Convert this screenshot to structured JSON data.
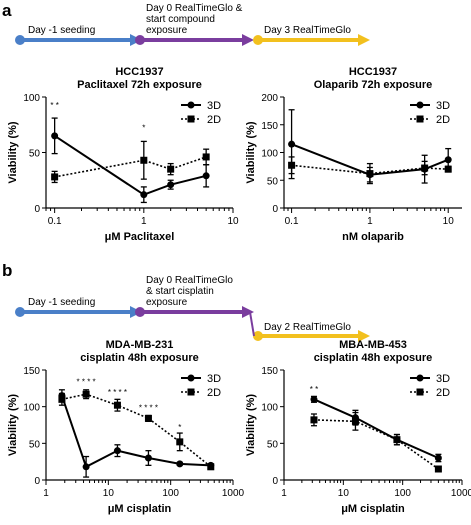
{
  "panel_a": {
    "label": "a",
    "timeline": [
      {
        "text": [
          "Day -1 seeding"
        ],
        "color": "#4a7fc8"
      },
      {
        "text": [
          "Day 0 RealTimeGlo &",
          "start compound",
          "exposure"
        ],
        "color": "#7a3d9e"
      },
      {
        "text": [
          "Day 3 RealTimeGlo"
        ],
        "color": "#f2c01e"
      }
    ]
  },
  "panel_b": {
    "label": "b",
    "timeline": [
      {
        "text": [
          "Day -1 seeding"
        ],
        "color": "#4a7fc8"
      },
      {
        "text": [
          "Day 0 RealTimeGlo",
          "& start cisplatin",
          "exposure"
        ],
        "color": "#7a3d9e"
      },
      {
        "text": [
          "Day 2 RealTimeGlo"
        ],
        "color": "#f2c01e"
      }
    ]
  },
  "chart_data": [
    {
      "type": "line",
      "title": [
        "HCC1937",
        "Paclitaxel 72h exposure"
      ],
      "xlabel": "μM Paclitaxel",
      "ylabel": "Viability (%)",
      "xscale": "log",
      "xlim": [
        0.08,
        10
      ],
      "ylim": [
        0,
        100
      ],
      "xticks": [
        0.1,
        1,
        10
      ],
      "xtick_labels": [
        "0.1",
        "1",
        "10"
      ],
      "yticks": [
        0,
        50,
        100
      ],
      "ytick_labels": [
        "0",
        "50",
        "100"
      ],
      "legend_position": "top-right",
      "series": [
        {
          "name": "3D",
          "style": "solid",
          "marker": "circle",
          "x": [
            0.1,
            1,
            2,
            5
          ],
          "y": [
            65,
            12,
            21,
            29
          ],
          "err": [
            16,
            7,
            4,
            10
          ]
        },
        {
          "name": "2D",
          "style": "dotted",
          "marker": "square",
          "x": [
            0.1,
            1,
            2,
            5
          ],
          "y": [
            28,
            43,
            35,
            46
          ],
          "err": [
            5,
            17,
            5,
            7
          ]
        }
      ],
      "annotations": [
        {
          "x": 0.1,
          "y": 90,
          "text": "* *"
        },
        {
          "x": 1,
          "y": 70,
          "text": "*"
        }
      ]
    },
    {
      "type": "line",
      "title": [
        "HCC1937",
        "Olaparib 72h exposure"
      ],
      "xlabel": "nM olaparib",
      "ylabel": "Viability (%)",
      "xscale": "log",
      "xlim": [
        0.08,
        15
      ],
      "ylim": [
        0,
        200
      ],
      "xticks": [
        0.1,
        1,
        10
      ],
      "xtick_labels": [
        "0.1",
        "1",
        "10"
      ],
      "yticks": [
        0,
        50,
        100,
        150,
        200
      ],
      "ytick_labels": [
        "0",
        "50",
        "100",
        "150",
        "200"
      ],
      "legend_position": "top-right",
      "series": [
        {
          "name": "3D",
          "style": "solid",
          "marker": "circle",
          "x": [
            0.1,
            1,
            5,
            10
          ],
          "y": [
            115,
            60,
            70,
            87
          ],
          "err": [
            62,
            13,
            25,
            20
          ]
        },
        {
          "name": "2D",
          "style": "dotted",
          "marker": "square",
          "x": [
            0.1,
            1,
            5,
            10
          ],
          "y": [
            77,
            62,
            72,
            70
          ],
          "err": [
            15,
            18,
            12,
            5
          ]
        }
      ],
      "annotations": []
    },
    {
      "type": "line",
      "title": [
        "MDA-MB-231",
        "cisplatin 48h exposure"
      ],
      "xlabel": "μM cisplatin",
      "ylabel": "Viability (%)",
      "xscale": "log",
      "xlim": [
        1,
        1000
      ],
      "ylim": [
        0,
        150
      ],
      "xticks": [
        1,
        10,
        100,
        1000
      ],
      "xtick_labels": [
        "1",
        "10",
        "100",
        "1000"
      ],
      "yticks": [
        0,
        50,
        100,
        150
      ],
      "ytick_labels": [
        "0",
        "50",
        "100",
        "150"
      ],
      "legend_position": "top-right",
      "series": [
        {
          "name": "3D",
          "style": "solid",
          "marker": "circle",
          "x": [
            1.8,
            4.4,
            14,
            44,
            140,
            440
          ],
          "y": [
            115,
            18,
            40,
            30,
            22,
            20
          ],
          "err": [
            8,
            14,
            8,
            10,
            2,
            2
          ]
        },
        {
          "name": "2D",
          "style": "dotted",
          "marker": "square",
          "x": [
            1.8,
            4.4,
            14,
            44,
            140,
            440
          ],
          "y": [
            110,
            117,
            102,
            84,
            52,
            18
          ],
          "err": [
            8,
            6,
            8,
            4,
            12,
            3
          ]
        }
      ],
      "annotations": [
        {
          "x": 4.4,
          "y": 130,
          "text": "* * * *"
        },
        {
          "x": 14,
          "y": 116,
          "text": "* * * *"
        },
        {
          "x": 44,
          "y": 95,
          "text": "* * * *"
        },
        {
          "x": 140,
          "y": 68,
          "text": "*"
        }
      ]
    },
    {
      "type": "line",
      "title": [
        "MBA-MB-453",
        "cisplatin 48h exposure"
      ],
      "xlabel": "μM cisplatin",
      "ylabel": "Viability (%)",
      "xscale": "log",
      "xlim": [
        1,
        1000
      ],
      "ylim": [
        0,
        150
      ],
      "xticks": [
        1,
        10,
        100,
        1000
      ],
      "xtick_labels": [
        "1",
        "10",
        "100",
        "1000"
      ],
      "yticks": [
        0,
        50,
        100,
        150
      ],
      "ytick_labels": [
        "0",
        "50",
        "100",
        "150"
      ],
      "legend_position": "top-right",
      "series": [
        {
          "name": "3D",
          "style": "solid",
          "marker": "circle",
          "x": [
            3.2,
            16,
            80,
            400
          ],
          "y": [
            110,
            85,
            55,
            30
          ],
          "err": [
            4,
            10,
            7,
            5
          ]
        },
        {
          "name": "2D",
          "style": "dotted",
          "marker": "square",
          "x": [
            3.2,
            16,
            80,
            400
          ],
          "y": [
            82,
            80,
            55,
            15
          ],
          "err": [
            8,
            12,
            7,
            3
          ]
        }
      ],
      "annotations": [
        {
          "x": 3.2,
          "y": 120,
          "text": "* *"
        }
      ]
    }
  ]
}
